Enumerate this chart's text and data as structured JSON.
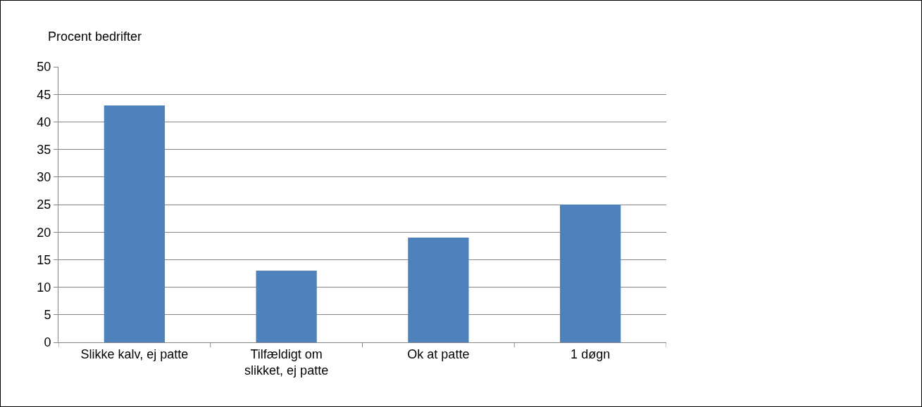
{
  "chart_data": {
    "type": "bar",
    "ylabel": "Procent bedrifter",
    "categories": [
      "Slikke kalv, ej patte",
      "Tilfældigt om slikket, ej patte",
      "Ok at patte",
      "1 døgn"
    ],
    "values": [
      43,
      13,
      19,
      25
    ],
    "color": "#4f81bd",
    "ylim": [
      0,
      50
    ],
    "yticks": [
      0,
      5,
      10,
      15,
      20,
      25,
      30,
      35,
      40,
      45,
      50
    ],
    "grid": "y"
  }
}
